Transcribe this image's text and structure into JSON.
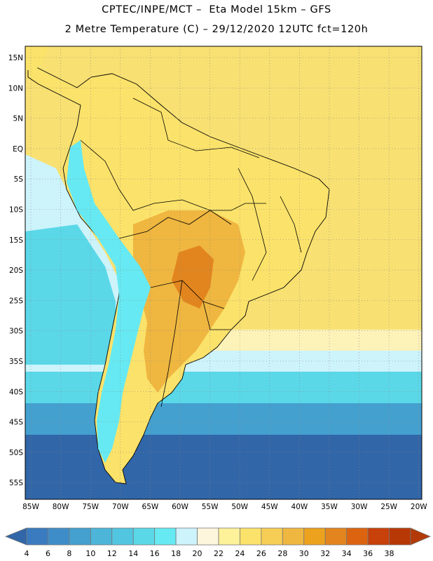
{
  "header": {
    "line1": "CPTEC/INPE/MCT –  Eta Model 15km – GFS",
    "line2": "2 Metre Temperature (C) – 29/12/2020 12UTC fct=120h"
  },
  "axes": {
    "lat_labels": [
      "15N",
      "10N",
      "5N",
      "EQ",
      "5S",
      "10S",
      "15S",
      "20S",
      "25S",
      "30S",
      "35S",
      "40S",
      "45S",
      "50S",
      "55S"
    ],
    "lon_labels": [
      "85W",
      "80W",
      "75W",
      "70W",
      "65W",
      "60W",
      "55W",
      "50W",
      "45W",
      "40W",
      "35W",
      "30W",
      "25W",
      "20W"
    ]
  },
  "colorbar": {
    "labels": [
      "4",
      "6",
      "8",
      "10",
      "12",
      "14",
      "16",
      "18",
      "20",
      "22",
      "24",
      "26",
      "28",
      "30",
      "32",
      "34",
      "36",
      "38"
    ],
    "colors": [
      "#3a7bbf",
      "#3f8dc8",
      "#44a0cf",
      "#4cb5d8",
      "#52c6e0",
      "#5ad8e8",
      "#66e9f2",
      "#cdf3fb",
      "#fdf6dc",
      "#fdf19a",
      "#fbe26a",
      "#f6cd55",
      "#efb640",
      "#eda21e",
      "#e2851e",
      "#dc6410",
      "#c8400a",
      "#b83805"
    ],
    "under_color": "#3166a8",
    "over_color": "#b33a06"
  },
  "map": {
    "ocean_warm": "#f8e072",
    "ocean_mild": "#fdf2b8",
    "ocean_cool": "#cdf3fb",
    "ocean_cold": "#5ad8e8",
    "ocean_colder": "#44a0cf",
    "ocean_coldest": "#3166a8",
    "land_base": "#fbe26a",
    "land_hot": "#efb640",
    "land_hottest": "#e2851e",
    "andes_color": "#66e9f2"
  }
}
